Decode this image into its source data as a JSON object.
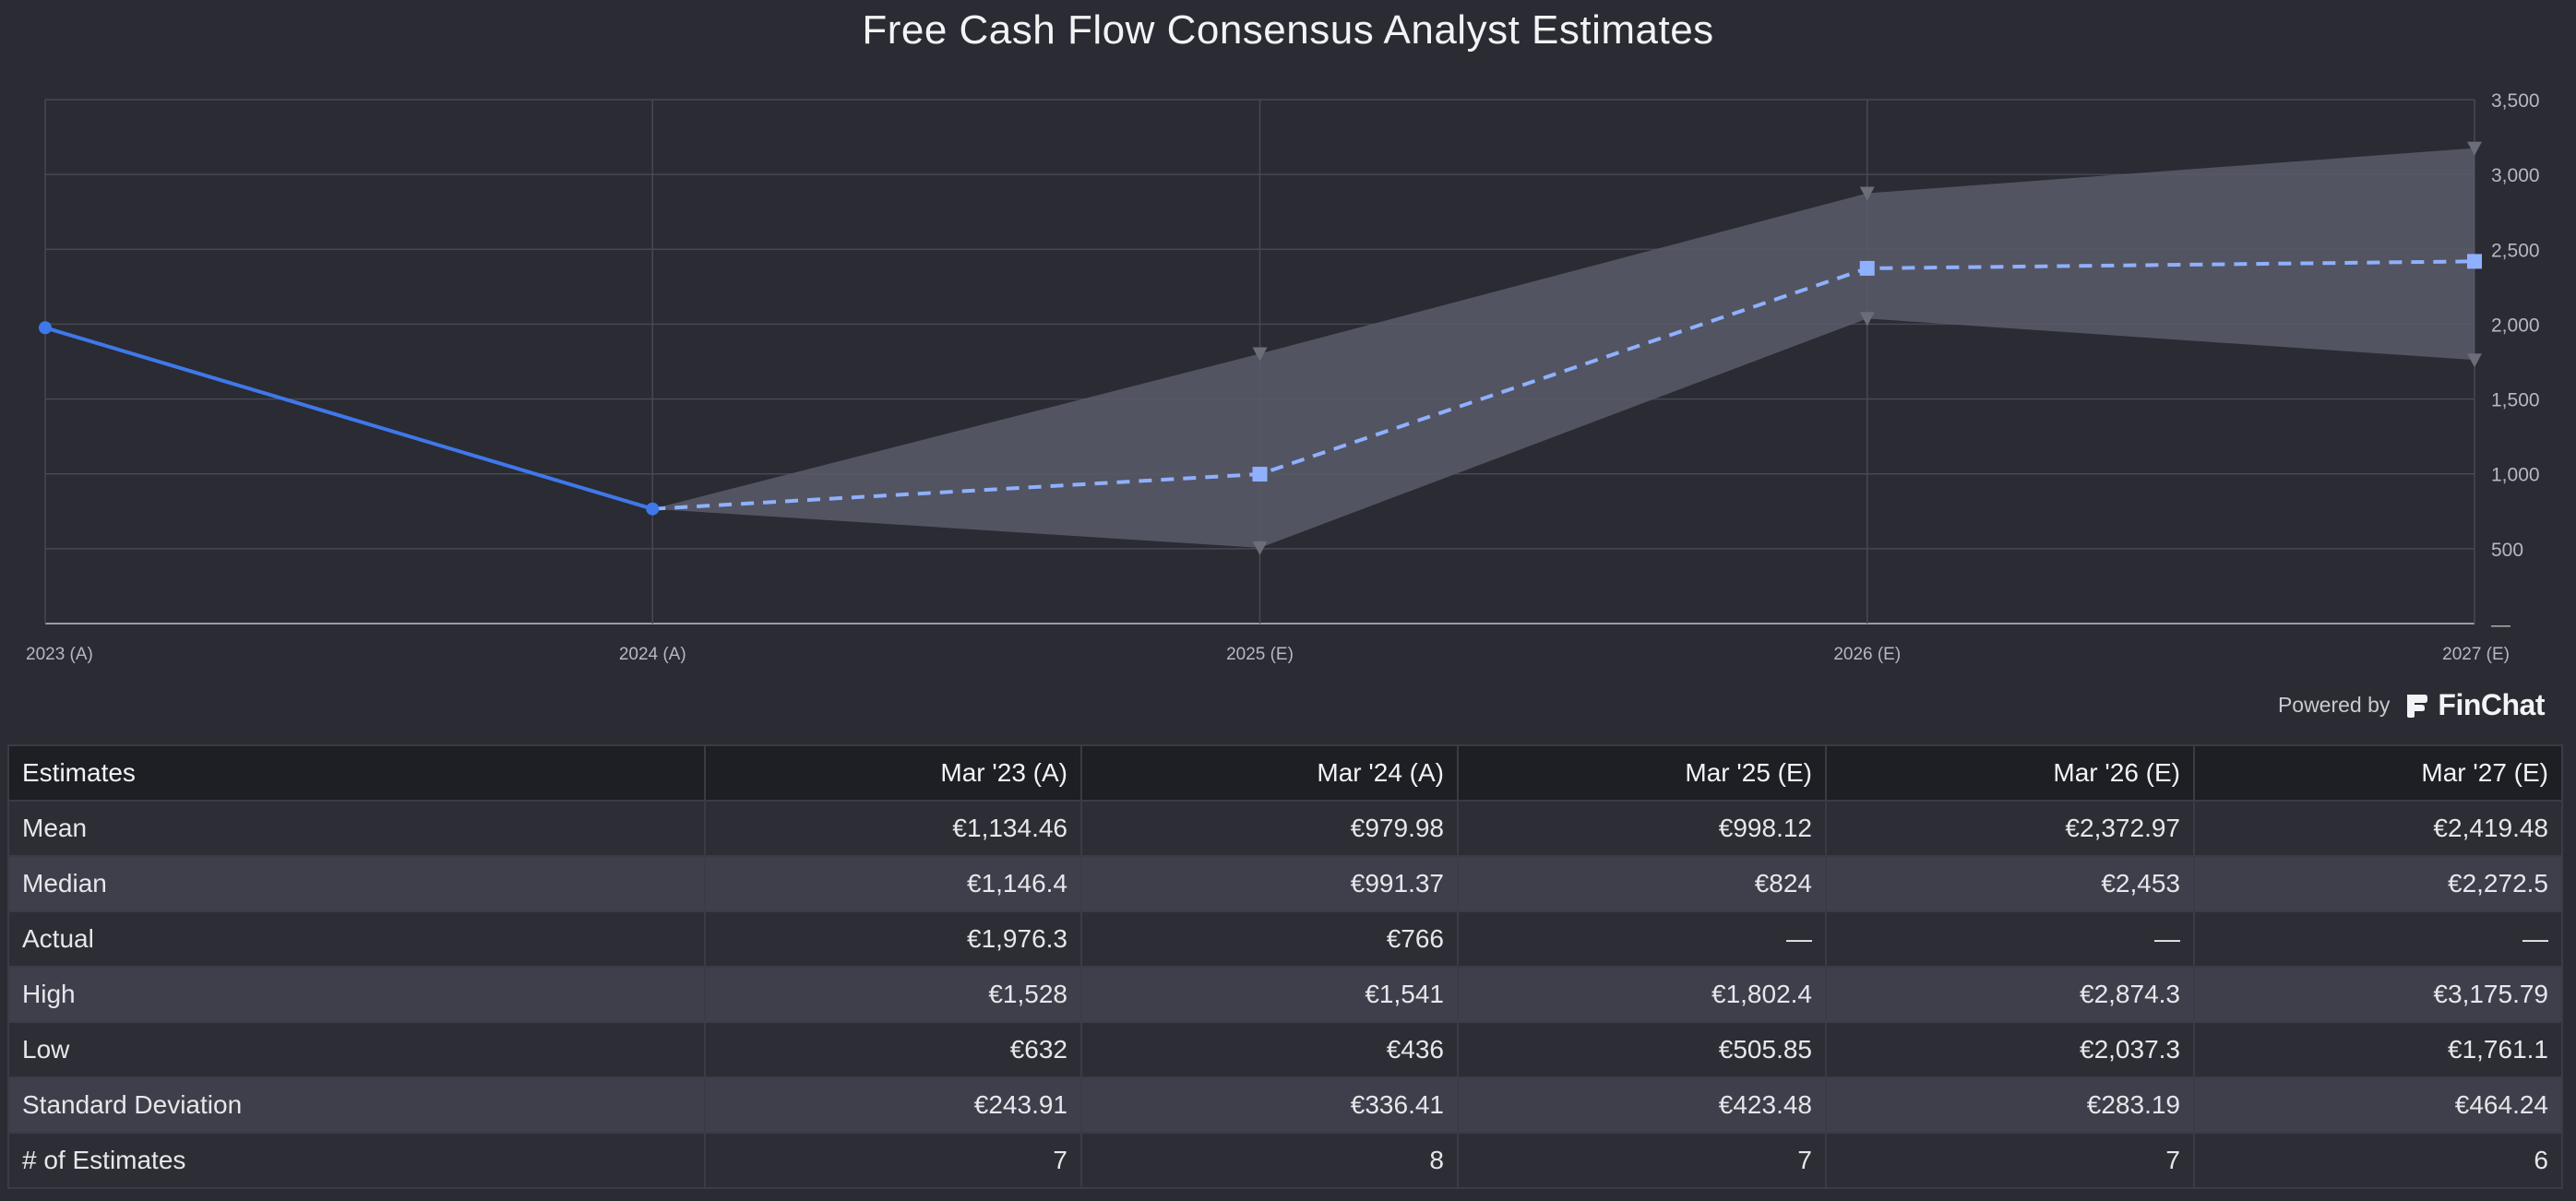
{
  "chart_data": {
    "type": "line",
    "title": "Free Cash Flow Consensus Analyst Estimates",
    "categories": [
      "2023 (A)",
      "2024 (A)",
      "2025 (E)",
      "2026 (E)",
      "2027 (E)"
    ],
    "ylim": [
      0,
      3500
    ],
    "yticks": [
      0,
      500,
      1000,
      1500,
      2000,
      2500,
      3000,
      3500
    ],
    "ytick_labels": [
      "—",
      "500",
      "1,000",
      "1,500",
      "2,000",
      "2,500",
      "3,000",
      "3,500"
    ],
    "grid": true,
    "series": [
      {
        "name": "Actual",
        "style": "solid",
        "marker": "circle",
        "x": [
          0,
          1
        ],
        "values": [
          1976.3,
          766
        ]
      },
      {
        "name": "Mean",
        "style": "dashed",
        "marker": "square",
        "x": [
          1,
          2,
          3,
          4
        ],
        "values": [
          766,
          998.12,
          2372.97,
          2419.48
        ]
      },
      {
        "name": "High",
        "style": "range-upper",
        "marker": "triangle",
        "x": [
          1,
          2,
          3,
          4
        ],
        "values": [
          766,
          1802.4,
          2874.3,
          3175.79
        ]
      },
      {
        "name": "Low",
        "style": "range-lower",
        "marker": "triangle",
        "x": [
          1,
          2,
          3,
          4
        ],
        "values": [
          766,
          505.85,
          2037.3,
          1761.1
        ]
      }
    ],
    "colors": {
      "line": "#3f78ea",
      "dashed": "#8fb0ff",
      "band": "#5a5c6a",
      "marker_gray": "#6b6d78"
    }
  },
  "powered_by": {
    "label": "Powered by",
    "brand": "FinChat"
  },
  "table": {
    "headers": [
      "Estimates",
      "Mar '23 (A)",
      "Mar '24 (A)",
      "Mar '25 (E)",
      "Mar '26 (E)",
      "Mar '27 (E)"
    ],
    "rows": [
      [
        "Mean",
        "€1,134.46",
        "€979.98",
        "€998.12",
        "€2,372.97",
        "€2,419.48"
      ],
      [
        "Median",
        "€1,146.4",
        "€991.37",
        "€824",
        "€2,453",
        "€2,272.5"
      ],
      [
        "Actual",
        "€1,976.3",
        "€766",
        "—",
        "—",
        "—"
      ],
      [
        "High",
        "€1,528",
        "€1,541",
        "€1,802.4",
        "€2,874.3",
        "€3,175.79"
      ],
      [
        "Low",
        "€632",
        "€436",
        "€505.85",
        "€2,037.3",
        "€1,761.1"
      ],
      [
        "Standard Deviation",
        "€243.91",
        "€336.41",
        "€423.48",
        "€283.19",
        "€464.24"
      ],
      [
        "# of Estimates",
        "7",
        "8",
        "7",
        "7",
        "6"
      ]
    ]
  }
}
